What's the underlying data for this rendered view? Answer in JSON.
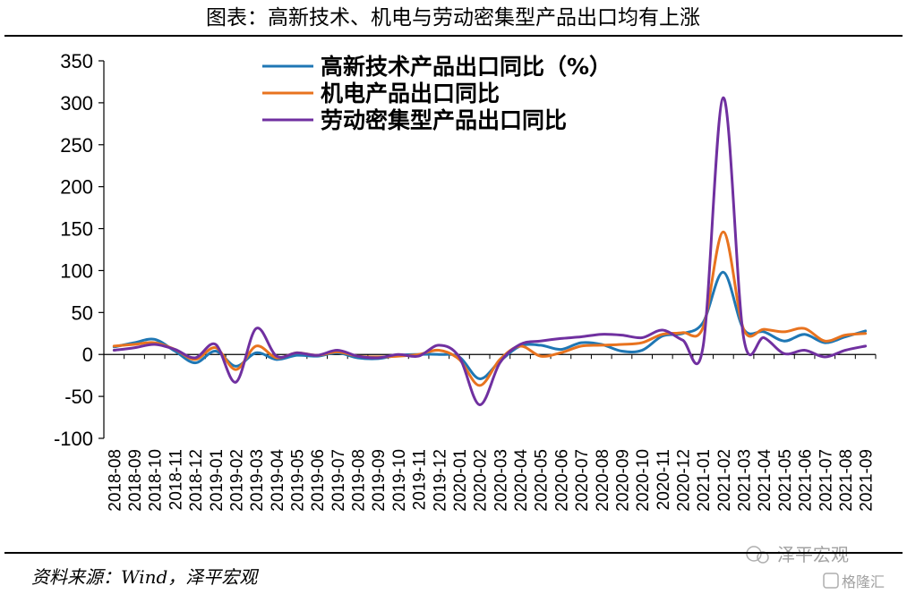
{
  "header_title": "图表：高新技术、机电与劳动密集型产品出口均有上涨",
  "source_text": "资料来源：Wind，泽平宏观",
  "watermark": {
    "account": "泽平宏观",
    "site": "格隆汇"
  },
  "colors": {
    "series_high_tech": "#1f77b4",
    "series_electromech": "#e8731f",
    "series_labor": "#7030a0",
    "axis": "#000000",
    "rule": "#000000"
  },
  "chart_data": {
    "type": "line",
    "title": "",
    "xlabel": "",
    "ylabel": "",
    "ylim": [
      -100,
      350
    ],
    "yticks": [
      -100,
      -50,
      0,
      50,
      100,
      150,
      200,
      250,
      300,
      350
    ],
    "grid": false,
    "legend_position": "top",
    "x": [
      "2018-08",
      "2018-09",
      "2018-10",
      "2018-11",
      "2018-12",
      "2019-01",
      "2019-02",
      "2019-03",
      "2019-04",
      "2019-05",
      "2019-06",
      "2019-07",
      "2019-08",
      "2019-09",
      "2019-10",
      "2019-11",
      "2019-12",
      "2020-01",
      "2020-02",
      "2020-03",
      "2020-04",
      "2020-05",
      "2020-06",
      "2020-07",
      "2020-08",
      "2020-09",
      "2020-10",
      "2020-11",
      "2020-12",
      "2021-01",
      "2021-02",
      "2021-03",
      "2021-04",
      "2021-05",
      "2021-06",
      "2021-07",
      "2021-08",
      "2021-09"
    ],
    "series": [
      {
        "name": "高新技术产品出口同比（%）",
        "color_key": "series_high_tech",
        "values": [
          9,
          14,
          18,
          4,
          -10,
          4,
          -14,
          2,
          -6,
          -1,
          -2,
          2,
          -4,
          -5,
          -1,
          0,
          0,
          -3,
          -29,
          -8,
          10,
          11,
          6,
          14,
          12,
          4,
          5,
          22,
          25,
          38,
          98,
          30,
          27,
          16,
          24,
          14,
          21,
          28
        ]
      },
      {
        "name": "机电产品出口同比",
        "color_key": "series_electromech",
        "values": [
          10,
          12,
          14,
          6,
          -6,
          8,
          -18,
          10,
          -4,
          2,
          -1,
          3,
          -2,
          -3,
          -2,
          0,
          5,
          -6,
          -37,
          -6,
          10,
          -2,
          2,
          10,
          11,
          12,
          14,
          24,
          26,
          32,
          146,
          30,
          30,
          27,
          31,
          16,
          23,
          25
        ]
      },
      {
        "name": "劳动密集型产品出口同比",
        "color_key": "series_labor",
        "values": [
          5,
          8,
          12,
          6,
          -4,
          12,
          -33,
          31,
          -2,
          2,
          -1,
          5,
          -2,
          -4,
          0,
          -2,
          11,
          -3,
          -60,
          -10,
          12,
          16,
          19,
          21,
          24,
          23,
          20,
          29,
          17,
          9,
          306,
          20,
          20,
          1,
          5,
          -3,
          5,
          10
        ]
      }
    ]
  }
}
